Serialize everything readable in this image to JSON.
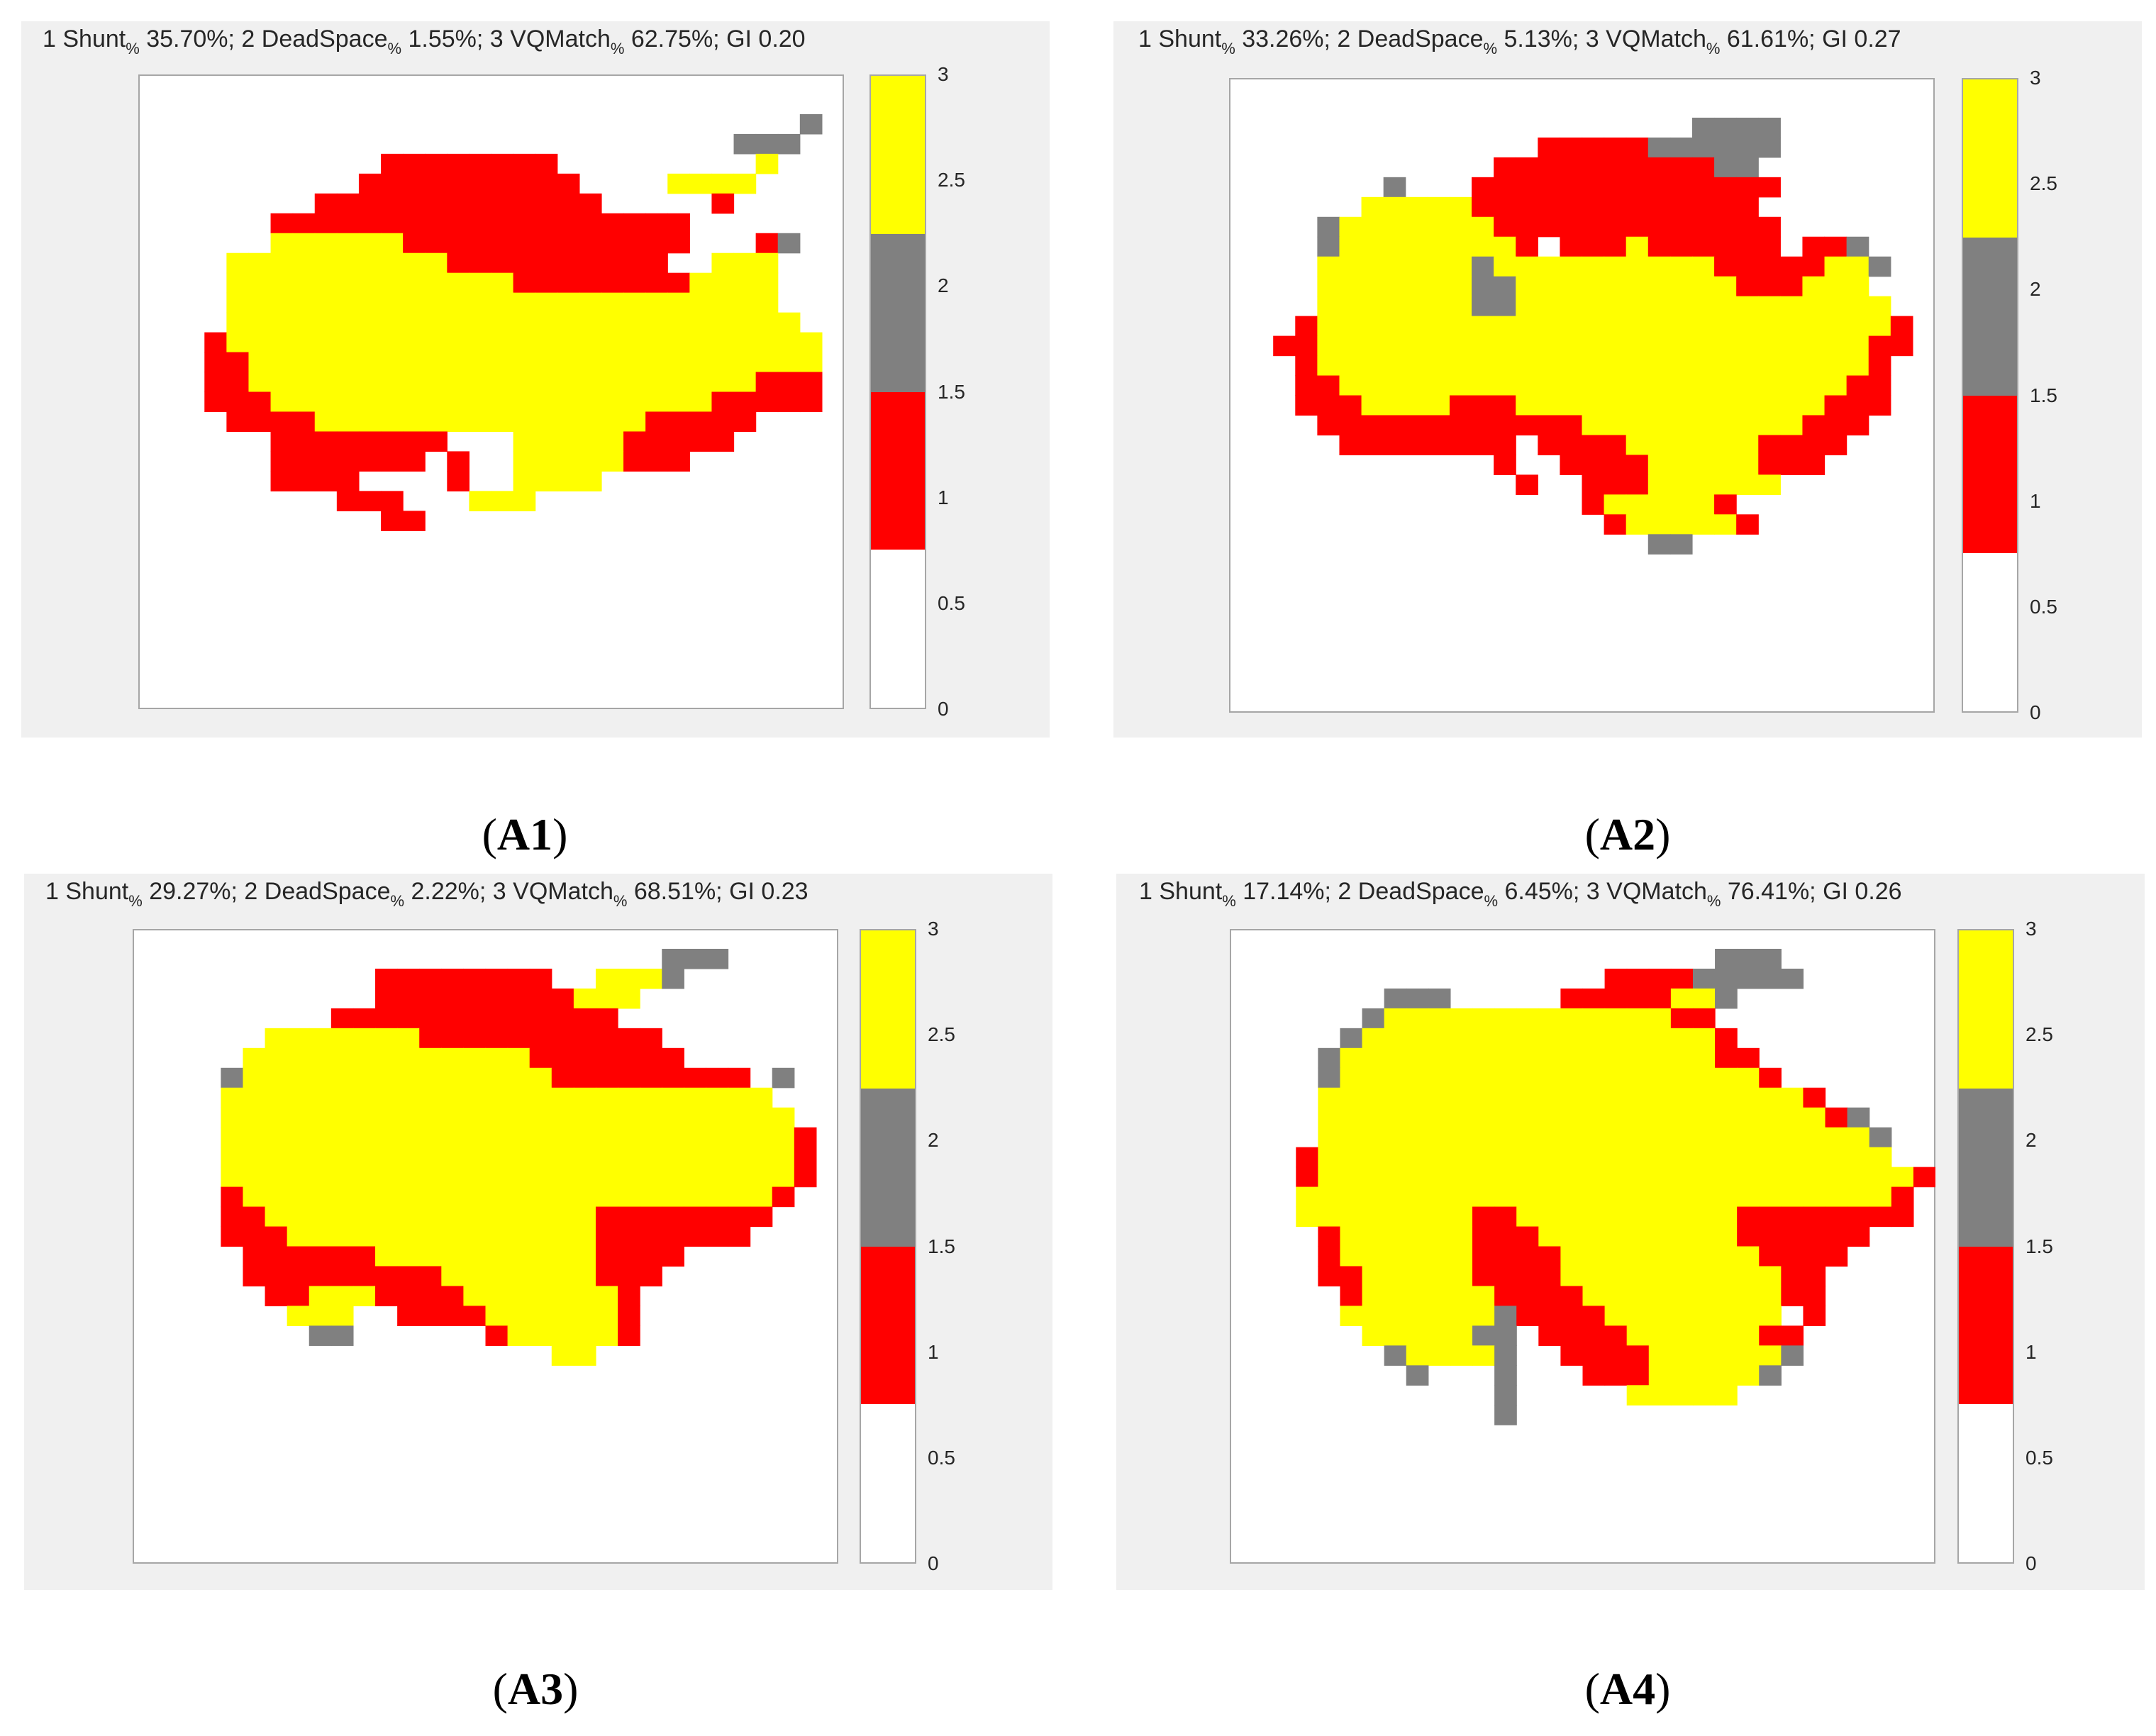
{
  "colors": {
    "value_0_5": "#ffffff",
    "value_1": "#ff0000",
    "value_2": "#808080",
    "value_3": "#ffff00",
    "panel_bg": "#f0f0f0"
  },
  "colorbar": {
    "ticks": [
      "3",
      "2.5",
      "2",
      "1.5",
      "1",
      "0.5",
      "0"
    ],
    "tick_values": [
      3,
      2.5,
      2,
      1.5,
      1,
      0.5,
      0
    ],
    "segments": [
      {
        "from": 0,
        "to": 0.75,
        "color": "#ffffff"
      },
      {
        "from": 0.75,
        "to": 1.5,
        "color": "#ff0000"
      },
      {
        "from": 1.5,
        "to": 2.25,
        "color": "#808080"
      },
      {
        "from": 2.25,
        "to": 3,
        "color": "#ffff00"
      }
    ]
  },
  "panels": [
    {
      "caption": {
        "open": "(",
        "label": "A1",
        "close": ")"
      },
      "title": {
        "p1": "1 Shunt",
        "p1_sub": "%",
        "p2": " 35.70%; 2 DeadSpace",
        "p2_sub": "%",
        "p3": " 1.55%; 3 VQMatch",
        "p3_sub": "%",
        "p4": " 62.75%; GI 0.20"
      }
    },
    {
      "caption": {
        "open": "(",
        "label": "A2",
        "close": ")"
      },
      "title": {
        "p1": "1 Shunt",
        "p1_sub": "%",
        "p2": " 33.26%; 2 DeadSpace",
        "p2_sub": "%",
        "p3": " 5.13%; 3 VQMatch",
        "p3_sub": "%",
        "p4": " 61.61%; GI 0.27"
      }
    },
    {
      "caption": {
        "open": "(",
        "label": "A3",
        "close": ")"
      },
      "title": {
        "p1": "1 Shunt",
        "p1_sub": "%",
        "p2": " 29.27%; 2 DeadSpace",
        "p2_sub": "%",
        "p3": " 2.22%; 3 VQMatch",
        "p3_sub": "%",
        "p4": " 68.51%; GI 0.23"
      }
    },
    {
      "caption": {
        "open": "(",
        "label": "A4",
        "close": ")"
      },
      "title": {
        "p1": "1 Shunt",
        "p1_sub": "%",
        "p2": " 17.14%; 2 DeadSpace",
        "p2_sub": "%",
        "p3": " 6.45%; 3 VQMatch",
        "p3_sub": "%",
        "p4": " 76.41%; GI 0.26"
      }
    }
  ],
  "chart_data": [
    {
      "type": "heatmap",
      "title": "1 Shunt% 35.70%; 2 DeadSpace% 1.55%; 3 VQMatch% 62.75%; GI 0.20",
      "grid_size": [
        32,
        32
      ],
      "value_legend": {
        "1": "Shunt",
        "2": "DeadSpace",
        "3": "VQMatch"
      },
      "colorbar_range": [
        0,
        3
      ],
      "rows": [
        "................................",
        "................................",
        "..............................2.",
        "...........................222..",
        "...........11111111.........3...",
        "..........1111111111....3333....",
        "........1111111111111.....1.....",
        "......1111111111111111111.......",
        "......3333331111111111111...12..",
        "....33333333331111111111..333...",
        "....3333333333333111111113333...",
        "....3333333333333333333333333...",
        "....33333333333333333333333333..",
        "...1333333333333333333333333333.",
        "...1133333333333333333333333333.",
        "...1133333333333333333333333111.",
        "...1113333333333333333333311111.",
        "....111133333333333333311111....",
        "......11111111...3333311111.....",
        "......1111111.1..33333111.......",
        "......1111....1..3333...........",
        ".........111...333..............",
        "...........11..................."
      ]
    },
    {
      "type": "heatmap",
      "title": "1 Shunt% 33.26%; 2 DeadSpace% 5.13%; 3 VQMatch% 61.61%; GI 0.27",
      "grid_size": [
        32,
        32
      ],
      "value_legend": {
        "1": "Shunt",
        "2": "DeadSpace",
        "3": "VQMatch"
      },
      "colorbar_range": [
        0,
        3
      ],
      "rows": [
        "................................",
        "................................",
        ".....................2222.......",
        "..............11111222222.......",
        "............111111111122........",
        ".......2...11111111111111.......",
        "......333331111111111111........",
        "....233333331111111111111.......",
        "....2333333331.1113111111.112...",
        "....33333332333333333311111332..",
        "....3333333223333333333111333...",
        "....33333332233333333333333333..",
        "...1333333333333333333333333331.",
        "..11333333333333333333333333311.",
        "...133333333333333333333333331..",
        "...113333333333333333333333311..",
        "...111333311133333333333333111..",
        "....1111111111113333333333111...",
        ".....11111111.11113333331111....",
        "............1..111133333111.....",
        ".............1..111333333.......",
        "................1333331.........",
        ".................1333331........",
        "...................22..........."
      ]
    },
    {
      "type": "heatmap",
      "title": "1 Shunt% 29.27%; 2 DeadSpace% 2.22%; 3 VQMatch% 68.51%; GI 0.23",
      "grid_size": [
        32,
        32
      ],
      "value_legend": {
        "1": "Shunt",
        "2": "DeadSpace",
        "3": "VQMatch"
      },
      "colorbar_range": [
        0,
        3
      ],
      "rows": [
        "................................",
        "........................222.....",
        "...........11111111..3332.......",
        "...........111111111333.........",
        ".........1111111111111..........",
        "......333333311111111111........",
        ".....33333333333331111111.......",
        "....233333333333333111111111.2..",
        "....3333333333333333333333333...",
        "....33333333333333333333333333..",
        "....333333333333333333333333331.",
        "....333333333333333333333333331.",
        "....333333333333333333333333331.",
        "....13333333333333333333333331..",
        "....1133333333333333311111111...",
        "....111333333333333331111111....",
        ".....11111133333333331111.......",
        ".....1111111113333333111........",
        "......11333111133333331.........",
        ".......333..11113333331.........",
        "........22......1333331.........",
        "...................33..........."
      ]
    },
    {
      "type": "heatmap",
      "title": "1 Shunt% 17.14%; 2 DeadSpace% 6.45%; 3 VQMatch% 76.41%; GI 0.26",
      "grid_size": [
        32,
        32
      ],
      "value_legend": {
        "1": "Shunt",
        "2": "DeadSpace",
        "3": "VQMatch"
      },
      "colorbar_range": [
        0,
        3
      ],
      "rows": [
        "................................",
        "......................222.......",
        ".................111122222......",
        ".......222.....11111332.........",
        "......2333333333333311..........",
        ".....233333333333333331.........",
        "....23333333333333333311........",
        "....233333333333333333331.......",
        "....33333333333333333333331.....",
        "....3333333333333333333333312...",
        "....33333333333333333333333332..",
        "...133333333333333333333333333..",
        "...13333333333333333333333333331",
        "...3333333333333333333333333331.",
        "...3333333311333333333311111111.",
        "....1333333111333333333111111...",
        "....133333311113333333331111....",
        "....11333331111333333333311.....",
        ".....1333333111133333333311.....",
        ".....33333332111133333333.1.....",
        "......3333322.111133333311......",
        ".......233332..11113333332......",
        "........2...2...111333332.......",
        "............2.....33333.........",
        "............2..................."
      ]
    }
  ]
}
